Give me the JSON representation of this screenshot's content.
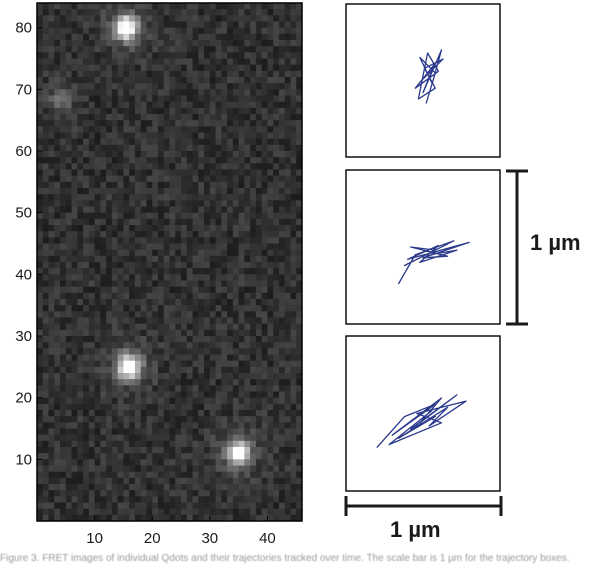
{
  "image_panel": {
    "x_ticks": [
      "10",
      "20",
      "30",
      "40"
    ],
    "y_ticks": [
      "10",
      "20",
      "30",
      "40",
      "50",
      "60",
      "70",
      "80"
    ],
    "pixel_grid": {
      "cols": 46,
      "rows": 84
    },
    "x_range": [
      0,
      46
    ],
    "y_range": [
      0,
      84
    ],
    "spots": [
      {
        "x": 15.5,
        "y": 80,
        "intensity": 1.0
      },
      {
        "x": 16,
        "y": 25,
        "intensity": 1.0
      },
      {
        "x": 35,
        "y": 11,
        "intensity": 0.95
      },
      {
        "x": 4,
        "y": 68,
        "intensity": 0.25
      }
    ],
    "background_color": "#2a2a2a",
    "spot_color": "#ffffff"
  },
  "trajectories": {
    "line_color": "#2b3a8c",
    "box_size_um": 1,
    "panels": [
      {
        "name": "top",
        "points": [
          [
            0.52,
            0.65
          ],
          [
            0.58,
            0.45
          ],
          [
            0.48,
            0.35
          ],
          [
            0.56,
            0.52
          ],
          [
            0.62,
            0.3
          ],
          [
            0.5,
            0.58
          ],
          [
            0.57,
            0.4
          ],
          [
            0.45,
            0.55
          ],
          [
            0.6,
            0.44
          ],
          [
            0.53,
            0.32
          ],
          [
            0.47,
            0.62
          ],
          [
            0.58,
            0.55
          ],
          [
            0.51,
            0.42
          ],
          [
            0.63,
            0.36
          ],
          [
            0.49,
            0.5
          ]
        ]
      },
      {
        "name": "middle",
        "points": [
          [
            0.34,
            0.74
          ],
          [
            0.45,
            0.55
          ],
          [
            0.7,
            0.46
          ],
          [
            0.38,
            0.62
          ],
          [
            0.58,
            0.52
          ],
          [
            0.42,
            0.5
          ],
          [
            0.66,
            0.56
          ],
          [
            0.5,
            0.57
          ],
          [
            0.8,
            0.47
          ],
          [
            0.4,
            0.58
          ],
          [
            0.6,
            0.49
          ],
          [
            0.48,
            0.6
          ],
          [
            0.72,
            0.52
          ],
          [
            0.55,
            0.55
          ]
        ]
      },
      {
        "name": "bottom",
        "points": [
          [
            0.2,
            0.72
          ],
          [
            0.38,
            0.52
          ],
          [
            0.58,
            0.44
          ],
          [
            0.3,
            0.64
          ],
          [
            0.62,
            0.4
          ],
          [
            0.48,
            0.56
          ],
          [
            0.72,
            0.38
          ],
          [
            0.42,
            0.6
          ],
          [
            0.58,
            0.52
          ],
          [
            0.34,
            0.66
          ],
          [
            0.66,
            0.46
          ],
          [
            0.54,
            0.58
          ],
          [
            0.78,
            0.42
          ],
          [
            0.46,
            0.5
          ],
          [
            0.62,
            0.56
          ],
          [
            0.28,
            0.7
          ],
          [
            0.56,
            0.48
          ]
        ]
      }
    ]
  },
  "scale_bars": {
    "vertical_label": "1 µm",
    "horizontal_label": "1 µm"
  },
  "caption_text": "Figure 3. FRET images of individual Qdots and their trajectories tracked over time. The scale bar is 1 µm for the trajectory boxes."
}
